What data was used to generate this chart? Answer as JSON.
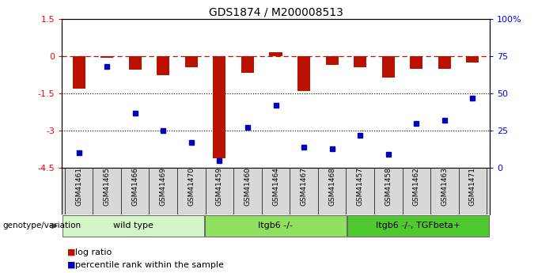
{
  "title": "GDS1874 / M200008513",
  "samples": [
    "GSM41461",
    "GSM41465",
    "GSM41466",
    "GSM41469",
    "GSM41470",
    "GSM41459",
    "GSM41460",
    "GSM41464",
    "GSM41467",
    "GSM41468",
    "GSM41457",
    "GSM41458",
    "GSM41462",
    "GSM41463",
    "GSM41471"
  ],
  "log_ratio": [
    -1.3,
    -0.05,
    -0.55,
    -0.75,
    -0.45,
    -4.1,
    -0.65,
    0.18,
    -1.4,
    -0.35,
    -0.45,
    -0.85,
    -0.5,
    -0.5,
    -0.25
  ],
  "percentile_rank": [
    10,
    68,
    37,
    25,
    17,
    5,
    27,
    42,
    14,
    13,
    22,
    9,
    30,
    32,
    47
  ],
  "groups": [
    {
      "label": "wild type",
      "start": 0,
      "end": 5,
      "color": "#d4f5c8"
    },
    {
      "label": "Itgb6 -/-",
      "start": 5,
      "end": 10,
      "color": "#90e060"
    },
    {
      "label": "Itgb6 -/-, TGFbeta+",
      "start": 10,
      "end": 15,
      "color": "#50c830"
    }
  ],
  "bar_color": "#bb1100",
  "dot_color": "#0000bb",
  "ylim_left": [
    -4.5,
    1.5
  ],
  "ylim_right": [
    0,
    100
  ],
  "left_yticks": [
    -4.5,
    -3.0,
    -1.5,
    0.0,
    1.5
  ],
  "left_yticklabels": [
    "-4.5",
    "-3",
    "-1.5",
    "0",
    "1.5"
  ],
  "right_yticks": [
    0,
    25,
    50,
    75,
    100
  ],
  "right_yticklabels": [
    "0",
    "25",
    "50",
    "75",
    "100%"
  ],
  "hlines": [
    -1.5,
    -3.0
  ],
  "legend_label_bar": "log ratio",
  "legend_label_dot": "percentile rank within the sample",
  "genotype_label": "genotype/variation",
  "dashed_line_y": 0.0
}
